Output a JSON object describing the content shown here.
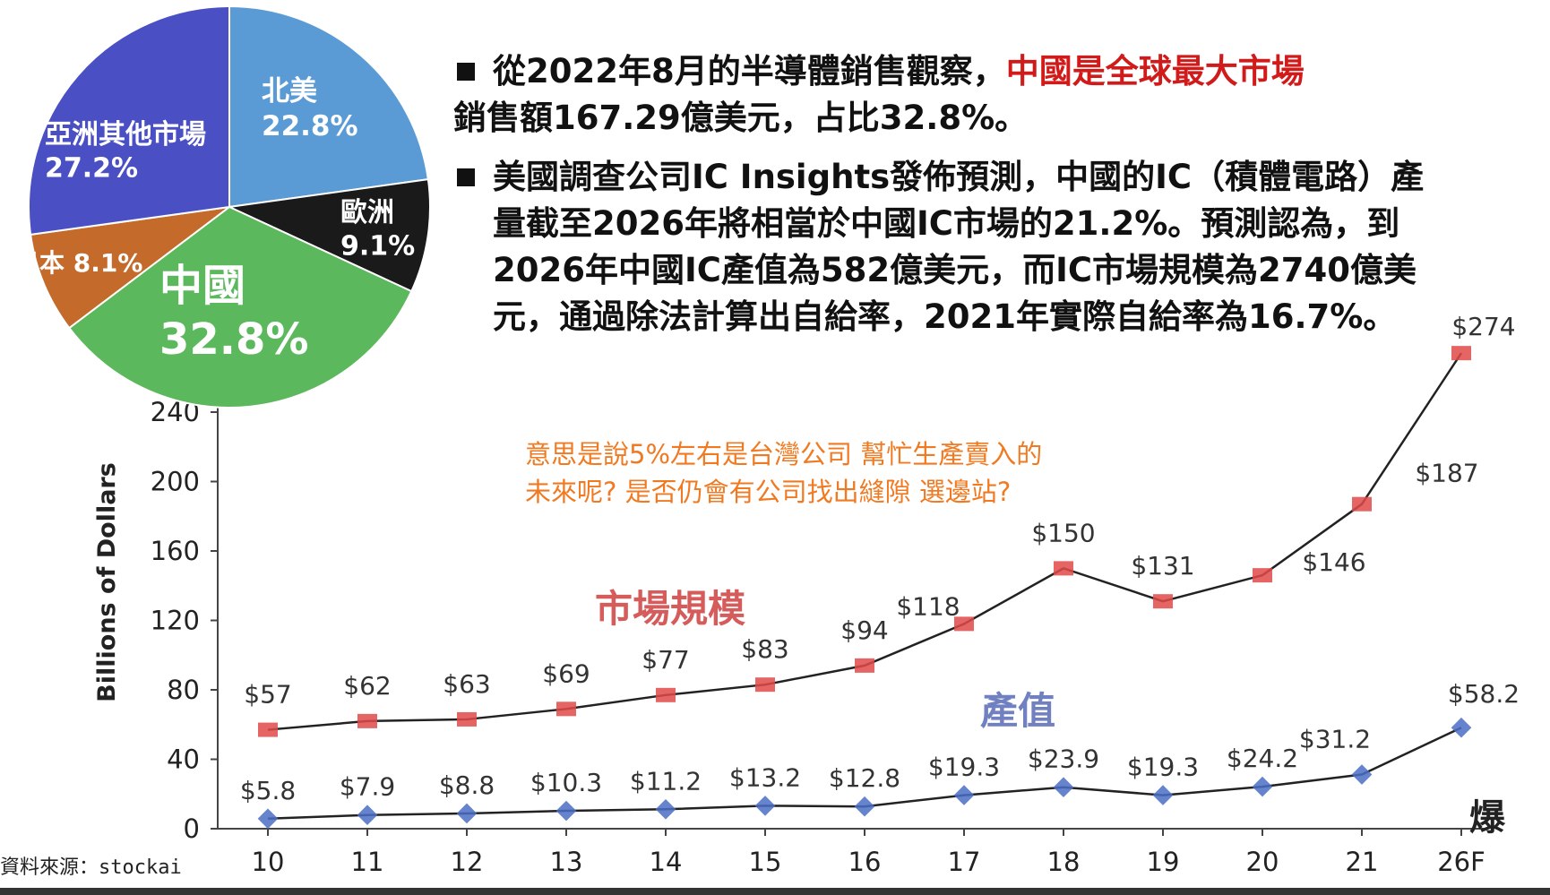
{
  "chart_data": [
    {
      "type": "pie",
      "slices": [
        {
          "label": "北美",
          "value": 22.8,
          "display": "22.8%",
          "color": "#5b9bd5"
        },
        {
          "label": "歐洲",
          "value": 9.1,
          "display": "9.1%",
          "color": "#1a1a1a"
        },
        {
          "label": "中國",
          "value": 32.8,
          "display": "32.8%",
          "color": "#5cb85c"
        },
        {
          "label": "日本",
          "value": 8.1,
          "display": "8.1%",
          "color": "#c46a2a"
        },
        {
          "label": "亞洲其他市場",
          "value": 27.2,
          "display": "27.2%",
          "color": "#4a4fc4"
        }
      ]
    },
    {
      "type": "line",
      "ylabel": "Billions of Dollars",
      "ylim": [
        0,
        240
      ],
      "yticks": [
        0,
        40,
        80,
        120,
        160,
        200,
        240
      ],
      "categories": [
        "10",
        "11",
        "12",
        "13",
        "14",
        "15",
        "16",
        "17",
        "18",
        "19",
        "20",
        "21",
        "26F"
      ],
      "series": [
        {
          "name": "市場規模",
          "color": "#e04a4a",
          "values": [
            57,
            62,
            63,
            69,
            77,
            83,
            94,
            118,
            150,
            131,
            146,
            187,
            274
          ],
          "labels": [
            "$57",
            "$62",
            "$63",
            "$69",
            "$77",
            "$83",
            "$94",
            "$118",
            "$150",
            "$131",
            "$146",
            "$187",
            "$274"
          ]
        },
        {
          "name": "產值",
          "color": "#4a6fc4",
          "values": [
            5.8,
            7.9,
            8.8,
            10.3,
            11.2,
            13.2,
            12.8,
            19.3,
            23.9,
            19.3,
            24.2,
            31.2,
            58.2
          ],
          "labels": [
            "$5.8",
            "$7.9",
            "$8.8",
            "$10.3",
            "$11.2",
            "$13.2",
            "$12.8",
            "$19.3",
            "$23.9",
            "$19.3",
            "$24.2",
            "$31.2",
            "$58.2"
          ]
        }
      ]
    }
  ],
  "text": {
    "bullet1_a": "從2022年8月的半導體銷售觀察，",
    "bullet1_red": "中國是全球最大市場",
    "bullet1_b": "銷售額167.29億美元，占比32.8%。",
    "bullet2": "美國調查公司IC Insights發佈預測，中國的IC（積體電路）產量截至2026年將相當於中國IC市場的21.2%。預測認為，到2026年中國IC產值為582億美元，而IC市場規模為2740億美元，通過除法計算出自給率，2021年實際自給率為16.7%。",
    "note_line1": "意思是說5%左右是台灣公司 幫忙生產賣入的",
    "note_line2": "未來呢? 是否仍會有公司找出縫隙 選邊站?",
    "source": "資料來源：stockai",
    "logo": "爆"
  }
}
